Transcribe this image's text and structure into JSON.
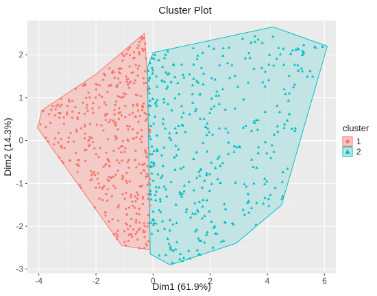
{
  "chart_data": {
    "type": "scatter",
    "title": "Cluster Plot",
    "xlabel": "Dim1 (61.9%)",
    "ylabel": "Dim2 (14.3%)",
    "xlim": [
      -4.4,
      6.4
    ],
    "ylim": [
      -3.1,
      2.8
    ],
    "x_ticks": [
      -4,
      -2,
      0,
      2,
      4,
      6
    ],
    "y_ticks": [
      -3,
      -2,
      -1,
      0,
      1,
      2
    ],
    "grid": true,
    "background": "#ebebeb",
    "legend": {
      "title": "cluster",
      "placement": "right"
    },
    "series": [
      {
        "name": "1",
        "color": "#f8766d",
        "fill": "#f4c6c2",
        "marker": "circle",
        "hull": [
          [
            -4.0,
            0.4
          ],
          [
            -3.9,
            0.7
          ],
          [
            -2.0,
            1.55
          ],
          [
            -0.3,
            2.5
          ],
          [
            -0.1,
            0.5
          ],
          [
            -0.1,
            -2.55
          ],
          [
            -1.1,
            -2.45
          ],
          [
            -4.05,
            0.3
          ]
        ],
        "n_points": 430
      },
      {
        "name": "2",
        "color": "#00bfc4",
        "fill": "#bfe3e4",
        "marker": "triangle",
        "hull": [
          [
            0.0,
            2.05
          ],
          [
            4.2,
            2.65
          ],
          [
            6.1,
            2.2
          ],
          [
            4.5,
            -1.5
          ],
          [
            2.9,
            -2.4
          ],
          [
            0.6,
            -2.9
          ],
          [
            -0.1,
            -2.65
          ],
          [
            -0.2,
            1.7
          ]
        ],
        "n_points": 400
      }
    ]
  }
}
